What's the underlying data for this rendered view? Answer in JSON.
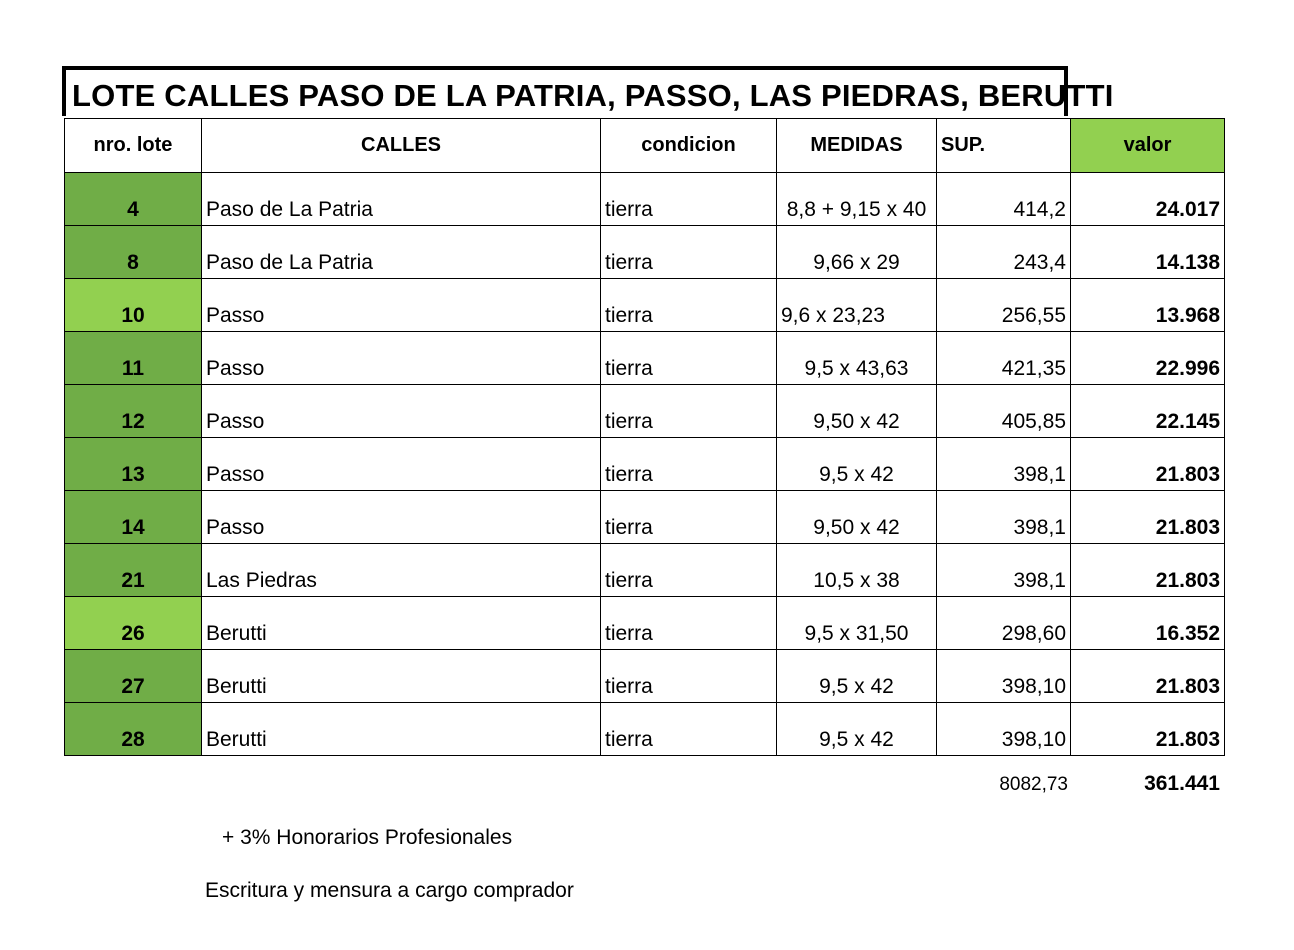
{
  "title": "LOTE CALLES  PASO DE LA PATRIA, PASSO, LAS PIEDRAS, BERUTTI",
  "table": {
    "headers": {
      "lote": "nro. lote",
      "calles": "CALLES",
      "condicion": "condicion",
      "medidas": "MEDIDAS",
      "sup": "SUP.",
      "valor": "valor"
    },
    "rows": [
      {
        "lote": "4",
        "calle": "Paso de La Patria",
        "condicion": "tierra",
        "medidas": "8,8 + 9,15 x 40",
        "sup": "414,2",
        "valor": "24.017"
      },
      {
        "lote": "8",
        "calle": "Paso de La Patria",
        "condicion": "tierra",
        "medidas": "9,66 x 29",
        "sup": "243,4",
        "valor": "14.138"
      },
      {
        "lote": "10",
        "calle": "Passo",
        "condicion": "tierra",
        "medidas": "9,6 x 23,23",
        "sup": "256,55",
        "valor": "13.968"
      },
      {
        "lote": "11",
        "calle": "Passo",
        "condicion": "tierra",
        "medidas": "9,5 x 43,63",
        "sup": "421,35",
        "valor": "22.996"
      },
      {
        "lote": "12",
        "calle": "Passo",
        "condicion": "tierra",
        "medidas": "9,50 x 42",
        "sup": "405,85",
        "valor": "22.145"
      },
      {
        "lote": "13",
        "calle": "Passo",
        "condicion": "tierra",
        "medidas": "9,5 x 42",
        "sup": "398,1",
        "valor": "21.803"
      },
      {
        "lote": "14",
        "calle": "Passo",
        "condicion": "tierra",
        "medidas": "9,50 x 42",
        "sup": "398,1",
        "valor": "21.803"
      },
      {
        "lote": "21",
        "calle": "Las Piedras",
        "condicion": "tierra",
        "medidas": "10,5 x 38",
        "sup": "398,1",
        "valor": "21.803"
      },
      {
        "lote": "26",
        "calle": "Berutti",
        "condicion": "tierra",
        "medidas": "9,5 x 31,50",
        "sup": "298,60",
        "valor": "16.352"
      },
      {
        "lote": "27",
        "calle": "Berutti",
        "condicion": "tierra",
        "medidas": "9,5 x 42",
        "sup": "398,10",
        "valor": "21.803"
      },
      {
        "lote": "28",
        "calle": "Berutti",
        "condicion": "tierra",
        "medidas": "9,5 x 42",
        "sup": "398,10",
        "valor": "21.803"
      }
    ]
  },
  "totals": {
    "sup": "8082,73",
    "valor": "361.441"
  },
  "notes": {
    "honorarios": "+ 3% Honorarios Profesionales",
    "escritura": "Escritura y mensura a cargo comprador"
  },
  "colors": {
    "dark_green": "#70ad47",
    "light_green": "#92d050"
  }
}
